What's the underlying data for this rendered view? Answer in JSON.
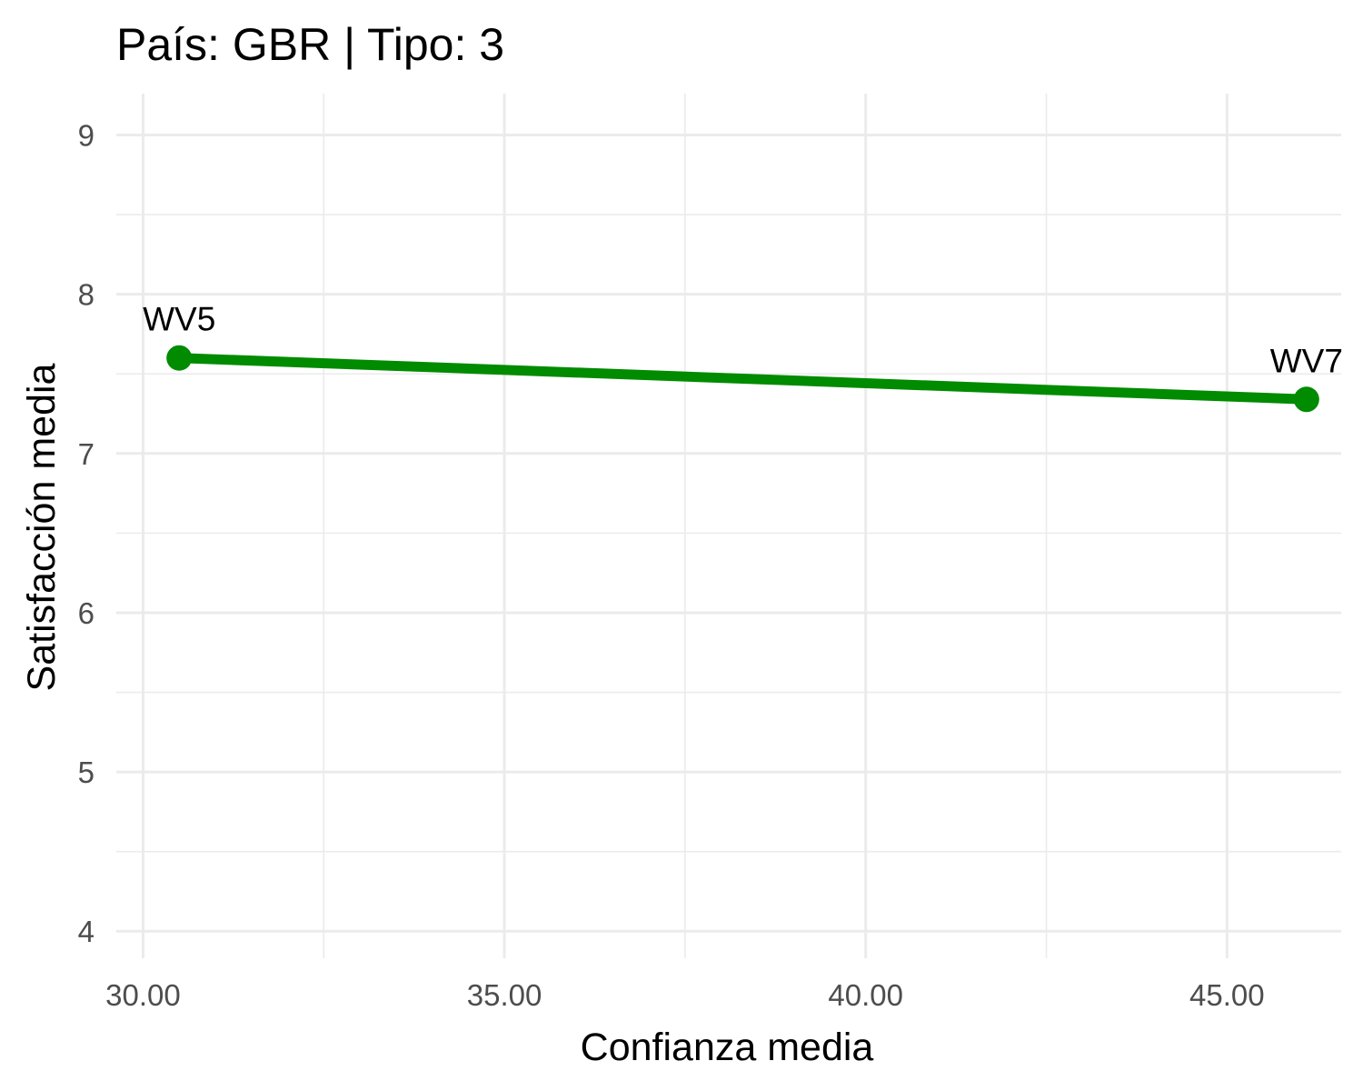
{
  "chart_data": {
    "type": "line",
    "title": "País: GBR | Tipo: 3",
    "xlabel": "Confianza media",
    "ylabel": "Satisfacción media",
    "xlim": [
      29.63,
      46.58
    ],
    "ylim": [
      3.83,
      9.26
    ],
    "x_ticks": [
      30,
      35,
      40,
      45
    ],
    "x_tick_labels": [
      "30.00",
      "35.00",
      "40.00",
      "45.00"
    ],
    "x_minor_ticks": [
      32.5,
      37.5,
      42.5
    ],
    "y_ticks": [
      4,
      5,
      6,
      7,
      8,
      9
    ],
    "y_tick_labels": [
      "4",
      "5",
      "6",
      "7",
      "8",
      "9"
    ],
    "y_minor_ticks": [
      4.5,
      5.5,
      6.5,
      7.5,
      8.5
    ],
    "grid": true,
    "legend": "none",
    "series": [
      {
        "color": "#008B00",
        "points": [
          {
            "label": "WV5",
            "x": 30.5,
            "y": 7.6
          },
          {
            "label": "WV7",
            "x": 46.1,
            "y": 7.34
          }
        ]
      }
    ]
  }
}
